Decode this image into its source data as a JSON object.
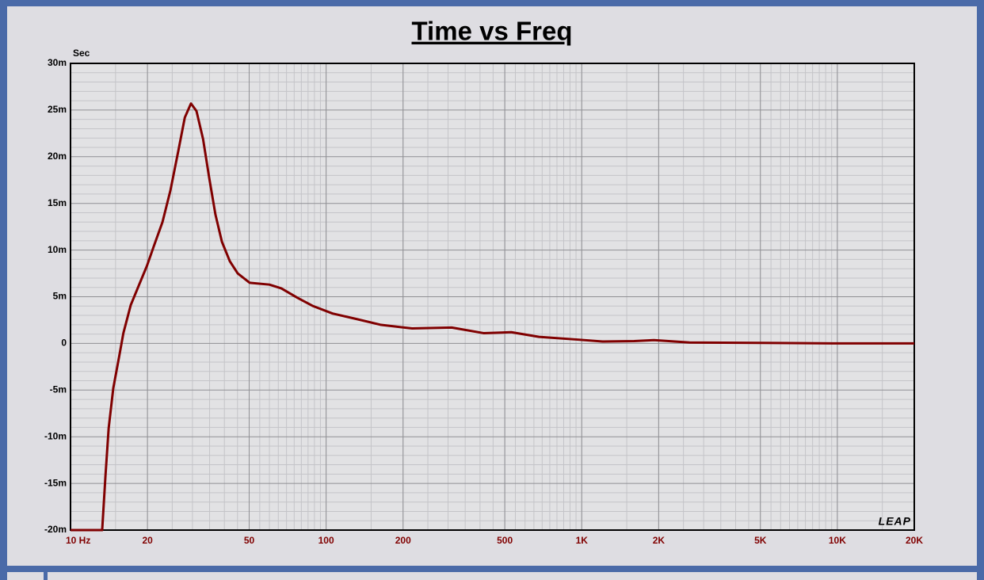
{
  "chart_data": {
    "type": "line",
    "title": "Time vs Freq",
    "y_label": "Sec",
    "logo": "LEAP",
    "x_scale": "log",
    "grid": true,
    "minor_grid": true,
    "color": "#800000",
    "xlim": [
      10,
      20000
    ],
    "ylim": [
      -0.02,
      0.03
    ],
    "xticks": [
      {
        "value": 10,
        "label": "10  Hz"
      },
      20,
      50,
      100,
      200,
      500,
      {
        "value": 1000,
        "label": "1K"
      },
      {
        "value": 2000,
        "label": "2K"
      },
      {
        "value": 5000,
        "label": "5K"
      },
      {
        "value": 10000,
        "label": "10K"
      },
      {
        "value": 20000,
        "label": "20K"
      }
    ],
    "yticks": [
      {
        "value": -0.02,
        "label": "-20m"
      },
      {
        "value": -0.015,
        "label": "-15m"
      },
      {
        "value": -0.01,
        "label": "-10m"
      },
      {
        "value": -0.005,
        "label": "-5m"
      },
      0,
      {
        "value": 0.005,
        "label": "5m"
      },
      {
        "value": 0.01,
        "label": "10m"
      },
      {
        "value": 0.015,
        "label": "15m"
      },
      {
        "value": 0.02,
        "label": "20m"
      },
      {
        "value": 0.025,
        "label": "25m"
      },
      {
        "value": 0.03,
        "label": "30m"
      }
    ],
    "x": [
      10,
      13.3,
      13.7,
      14.1,
      14.7,
      15.5,
      16.1,
      17.2,
      18.5,
      19.9,
      21.3,
      22.9,
      24.6,
      26.4,
      28.0,
      29.6,
      31.1,
      33.0,
      34.9,
      36.9,
      39.1,
      42.0,
      45.1,
      50.2,
      60.0,
      66.8,
      77.1,
      88.9,
      106,
      132,
      163,
      217,
      310,
      413,
      530,
      680,
      973,
      1205,
      1603,
      1916,
      2640,
      5020,
      9550,
      20000
    ],
    "values": [
      -0.02,
      -0.02,
      -0.0142,
      -0.0091,
      -0.0048,
      -0.0014,
      0.0011,
      0.0041,
      0.0062,
      0.0083,
      0.0106,
      0.013,
      0.0164,
      0.0206,
      0.0242,
      0.0257,
      0.0249,
      0.0219,
      0.0177,
      0.0138,
      0.0109,
      0.0088,
      0.0075,
      0.0065,
      0.0063,
      0.0059,
      0.0049,
      0.004,
      0.0032,
      0.0026,
      0.002,
      0.0016,
      0.0017,
      0.0011,
      0.0012,
      0.0007,
      0.0004,
      0.0002,
      0.00025,
      0.00035,
      0.0001,
      5e-05,
      0,
      0
    ]
  }
}
